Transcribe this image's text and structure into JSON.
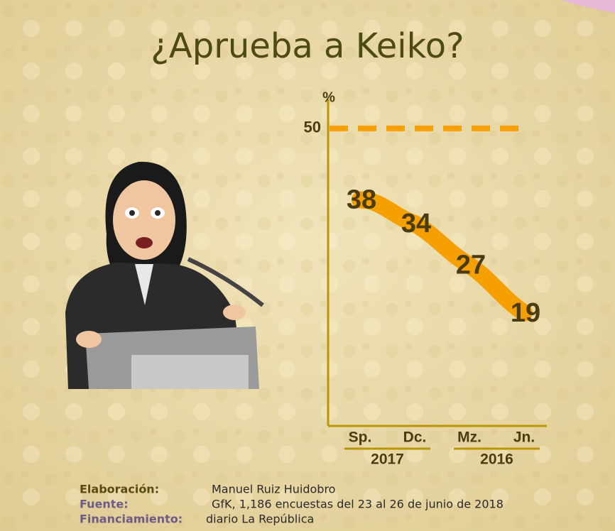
{
  "chart_data": {
    "type": "line",
    "title": "¿Aprueba a Keiko?",
    "y_label": "%",
    "categories": [
      "Sp.",
      "Dc.",
      "Mz.",
      "Jn."
    ],
    "groups": [
      {
        "name": "2017",
        "categories": [
          "Sp.",
          "Dc."
        ]
      },
      {
        "name": "2016",
        "categories": [
          "Mz.",
          "Jn."
        ]
      }
    ],
    "values": [
      38,
      34,
      27,
      19
    ],
    "color": "#f5a000",
    "ylim": [
      0,
      55
    ],
    "yticks": [
      50
    ],
    "grid": true
  },
  "credits": [
    {
      "label": "Elaboración:",
      "text": "Manuel Ruiz Huidobro"
    },
    {
      "label": "Fuente:",
      "text": "GfK, 1,186 encuestas del 23 al 26 de junio de 2018"
    },
    {
      "label": "Financiamiento:",
      "text": "diario La República"
    }
  ]
}
